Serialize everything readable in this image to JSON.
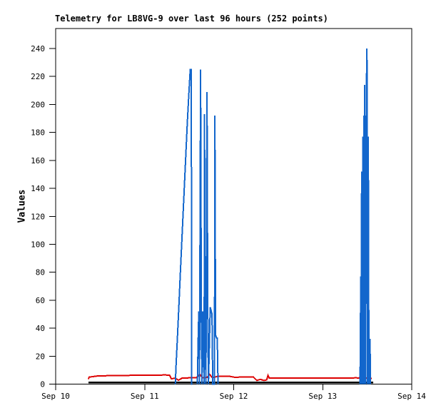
{
  "colors": {
    "series_blue": "#1266cc",
    "series_red": "#dd0000",
    "series_black": "#000000",
    "axis": "#000000",
    "background": "#ffffff"
  },
  "chart_data": {
    "type": "line",
    "title": "Telemetry for LB8VG-9 over last 96 hours (252 points)",
    "xlabel": "",
    "ylabel": "Values",
    "grid": false,
    "legend": null,
    "ylim": [
      0,
      254
    ],
    "y_axis": {
      "ticks": [
        0,
        20,
        40,
        60,
        80,
        100,
        120,
        140,
        160,
        180,
        200,
        220,
        240
      ]
    },
    "x_axis": {
      "unit": "days after Sep 10",
      "tick_days": [
        0,
        1,
        2,
        3,
        4
      ],
      "tick_labels": [
        "Sep 10",
        "Sep 11",
        "Sep 12",
        "Sep 13",
        "Sep 14"
      ],
      "xlim_days": [
        0,
        4
      ]
    },
    "series": [
      {
        "name": "red",
        "color": "#dd0000",
        "width": 2,
        "segments": [
          [
            [
              0.368,
              3.5
            ],
            [
              0.376,
              5.0
            ],
            [
              0.48,
              5.9
            ],
            [
              0.6,
              6.0
            ],
            [
              0.8,
              6.2
            ],
            [
              1.0,
              6.4
            ],
            [
              1.16,
              6.4
            ],
            [
              1.22,
              6.6
            ],
            [
              1.28,
              6.4
            ],
            [
              1.3,
              3.8
            ],
            [
              1.34,
              4.3
            ],
            [
              1.38,
              2.8
            ],
            [
              1.42,
              4.3
            ],
            [
              1.5,
              4.5
            ],
            [
              1.58,
              4.5
            ],
            [
              1.62,
              7.0
            ],
            [
              1.65,
              4.5
            ],
            [
              1.7,
              4.8
            ],
            [
              1.73,
              7.0
            ],
            [
              1.76,
              4.5
            ],
            [
              1.82,
              5.6
            ],
            [
              1.95,
              5.6
            ],
            [
              2.02,
              4.8
            ],
            [
              2.1,
              5.2
            ],
            [
              2.22,
              5.2
            ],
            [
              2.26,
              2.6
            ],
            [
              2.3,
              3.4
            ],
            [
              2.34,
              2.6
            ],
            [
              2.37,
              3.0
            ],
            [
              2.385,
              6.2
            ],
            [
              2.4,
              4.3
            ],
            [
              2.6,
              4.3
            ],
            [
              2.8,
              4.3
            ],
            [
              3.0,
              4.3
            ],
            [
              3.2,
              4.3
            ],
            [
              3.38,
              4.5
            ],
            [
              3.41,
              4.3
            ],
            [
              3.43,
              6.5
            ],
            [
              3.45,
              4.3
            ],
            [
              3.47,
              6.0
            ],
            [
              3.49,
              4.3
            ],
            [
              3.53,
              4.3
            ],
            [
              3.55,
              4.0
            ]
          ]
        ]
      },
      {
        "name": "black",
        "color": "#000000",
        "width": 2.5,
        "segments": [
          [
            [
              0.368,
              1.2
            ],
            [
              3.568,
              1.2
            ]
          ]
        ]
      },
      {
        "name": "blue",
        "color": "#1266cc",
        "width": 2,
        "segments": [
          [
            [
              1.344,
              0
            ],
            [
              1.352,
              13
            ],
            [
              1.368,
              34
            ],
            [
              1.384,
              56
            ],
            [
              1.4,
              78
            ],
            [
              1.416,
              100
            ],
            [
              1.432,
              122
            ],
            [
              1.448,
              144
            ],
            [
              1.464,
              166
            ],
            [
              1.48,
              188
            ],
            [
              1.496,
              207
            ],
            [
              1.512,
              225
            ],
            [
              1.524,
              225
            ],
            [
              1.528,
              0
            ],
            [
              1.536,
              0
            ]
          ],
          [
            [
              1.592,
              0
            ],
            [
              1.6,
              30
            ],
            [
              1.608,
              52
            ],
            [
              1.616,
              0
            ],
            [
              1.628,
              225
            ],
            [
              1.636,
              52
            ],
            [
              1.644,
              0
            ],
            [
              1.652,
              52
            ],
            [
              1.66,
              35
            ],
            [
              1.668,
              0
            ],
            [
              1.672,
              193
            ],
            [
              1.68,
              30
            ],
            [
              1.688,
              0
            ],
            [
              1.7,
              209
            ],
            [
              1.708,
              55
            ],
            [
              1.716,
              0
            ],
            [
              1.736,
              55
            ],
            [
              1.756,
              50
            ],
            [
              1.764,
              0
            ],
            [
              1.784,
              0
            ],
            [
              1.788,
              192
            ],
            [
              1.796,
              35
            ],
            [
              1.808,
              33
            ],
            [
              1.816,
              33
            ],
            [
              1.824,
              0
            ]
          ],
          [
            [
              3.42,
              0
            ],
            [
              3.428,
              77
            ],
            [
              3.432,
              0
            ],
            [
              3.436,
              129
            ],
            [
              3.44,
              152
            ],
            [
              3.444,
              0
            ],
            [
              3.448,
              130
            ],
            [
              3.452,
              177
            ],
            [
              3.456,
              0
            ],
            [
              3.46,
              152
            ],
            [
              3.464,
              192
            ],
            [
              3.468,
              0
            ],
            [
              3.472,
              214
            ],
            [
              3.476,
              130
            ],
            [
              3.48,
              192
            ],
            [
              3.484,
              0
            ],
            [
              3.488,
              177
            ],
            [
              3.492,
              214
            ],
            [
              3.496,
              240
            ],
            [
              3.5,
              214
            ],
            [
              3.504,
              0
            ],
            [
              3.508,
              130
            ],
            [
              3.512,
              177
            ],
            [
              3.516,
              77
            ],
            [
              3.52,
              0
            ],
            [
              3.528,
              32
            ],
            [
              3.532,
              32
            ],
            [
              3.536,
              0
            ]
          ]
        ]
      }
    ]
  }
}
